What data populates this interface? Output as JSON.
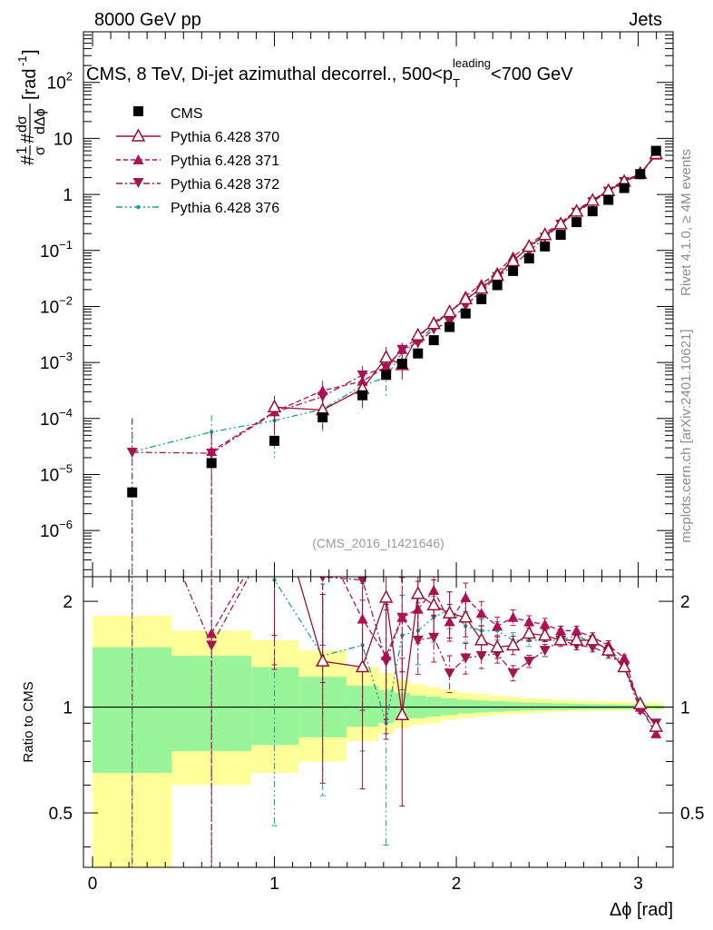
{
  "header": {
    "left": "8000 GeV pp",
    "right": "Jets"
  },
  "side_labels": {
    "rivet": "Rivet 4.1.0, ≥ 4M events",
    "mcplots": "mcplots.cern.ch [arXiv:2401.10621]"
  },
  "watermark": "(CMS_2016_I1421646)",
  "colors": {
    "cms": "#000000",
    "p370": "#9b1030",
    "p371": "#b0105a",
    "p372": "#a01850",
    "p376": "#17a095",
    "band_inner": "#99f599",
    "band_outer": "#ffff99"
  },
  "chart_data": {
    "type": "scatter",
    "title": "CMS, 8 TeV, Di-jet azimuthal decorrel., 500<p_T^leading<700 GeV",
    "title_parts": {
      "pre": "CMS, 8 TeV, Di-jet azimuthal decorrel., 500<p",
      "sub": "T",
      "sup": "leading",
      "post": "<700 GeV"
    },
    "xlabel": "Δϕ [rad]",
    "ylabel": "#frac{1}{σ}#frac{dσ}{dΔϕ} [rad⁻¹]",
    "ylabel_parts": {
      "hash1": "#",
      "num1": "1",
      "den1": "σ",
      "hash2": "#",
      "num2": "dσ",
      "den2": "dΔϕ",
      "unit": "[rad",
      "unit_sup": "-1",
      "unit_close": "]"
    },
    "ratio_ylabel": "Ratio to CMS",
    "xlim": [
      -0.05,
      3.1916
    ],
    "ylim": [
      1.5e-07,
      800
    ],
    "ratio_ylim": [
      0.35,
      2.35
    ],
    "x_ticks": [
      0,
      1,
      2,
      3
    ],
    "x_tick_labels": [
      "0",
      "1",
      "2",
      "3"
    ],
    "y_tick_labels": [
      {
        "value": 1e-06,
        "base": "10",
        "exp": "−6"
      },
      {
        "value": 1e-05,
        "base": "10",
        "exp": "−5"
      },
      {
        "value": 0.0001,
        "base": "10",
        "exp": "−4"
      },
      {
        "value": 0.001,
        "base": "10",
        "exp": "−3"
      },
      {
        "value": 0.01,
        "base": "10",
        "exp": "−2"
      },
      {
        "value": 0.1,
        "base": "10",
        "exp": "−1"
      },
      {
        "value": 1,
        "base": "1",
        "exp": ""
      },
      {
        "value": 10,
        "base": "10",
        "exp": ""
      },
      {
        "value": 100,
        "base": "10",
        "exp": "2"
      }
    ],
    "ratio_tick_labels": [
      {
        "value": 0.5,
        "label": "0.5"
      },
      {
        "value": 1,
        "label": "1"
      },
      {
        "value": 2,
        "label": "2"
      }
    ],
    "x": [
      0.218,
      0.654,
      1.0,
      1.265,
      1.484,
      1.614,
      1.702,
      1.789,
      1.876,
      1.963,
      2.051,
      2.138,
      2.225,
      2.312,
      2.4,
      2.487,
      2.574,
      2.661,
      2.749,
      2.836,
      2.923,
      3.011,
      3.098
    ],
    "bin_edges": [
      0,
      0.436,
      0.873,
      1.134,
      1.396,
      1.571,
      1.658,
      1.745,
      1.833,
      1.92,
      2.007,
      2.094,
      2.182,
      2.269,
      2.356,
      2.443,
      2.531,
      2.618,
      2.705,
      2.793,
      2.88,
      2.967,
      3.054,
      3.1416
    ],
    "series": [
      {
        "name": "CMS",
        "marker": "square",
        "values": [
          4.8e-06,
          1.6e-05,
          4e-05,
          0.000105,
          0.00026,
          0.0006,
          0.00095,
          0.00145,
          0.0025,
          0.0043,
          0.0075,
          0.0135,
          0.024,
          0.043,
          0.072,
          0.118,
          0.19,
          0.32,
          0.5,
          0.8,
          1.3,
          2.3,
          6.0
        ],
        "rel_err": [
          0.18,
          0.12,
          0.18,
          0.1,
          0.08,
          0.06,
          0.05,
          0.05,
          0.04,
          0.035,
          0.03,
          0.03,
          0.03,
          0.03,
          0.03,
          0.03,
          0.03,
          0.03,
          0.03,
          0.03,
          0.03,
          0.03,
          0.03
        ]
      },
      {
        "name": "Pythia 6.428 370",
        "marker": "triangle-up-open",
        "line": "solid",
        "ratio": [
          null,
          null,
          4.0,
          1.35,
          1.3,
          2.05,
          0.95,
          2.1,
          1.95,
          1.85,
          1.8,
          1.55,
          1.48,
          1.5,
          1.62,
          1.6,
          1.55,
          1.55,
          1.55,
          1.45,
          1.3,
          1.02,
          0.88
        ],
        "ratio_err": [
          null,
          null,
          0.6,
          0.55,
          0.55,
          0.55,
          0.45,
          0.25,
          0.18,
          0.15,
          0.12,
          0.1,
          0.07,
          0.06,
          0.05,
          0.04,
          0.04,
          0.03,
          0.03,
          0.03,
          0.02,
          0.02,
          0.02
        ]
      },
      {
        "name": "Pythia 6.428 371",
        "marker": "triangle-up",
        "line": "dashed",
        "ratio": [
          null,
          1.62,
          3.3,
          3.0,
          1.78,
          1.4,
          1.8,
          1.9,
          2.15,
          1.75,
          2.05,
          1.85,
          1.7,
          1.8,
          1.75,
          1.72,
          1.65,
          1.65,
          1.58,
          1.5,
          1.38,
          1.0,
          0.84
        ],
        "ratio_err": [
          null,
          1.2,
          0.6,
          0.5,
          0.45,
          0.4,
          0.3,
          0.2,
          0.15,
          0.12,
          0.1,
          0.08,
          0.06,
          0.05,
          0.04,
          0.04,
          0.03,
          0.03,
          0.03,
          0.03,
          0.02,
          0.02,
          0.02
        ]
      },
      {
        "name": "Pythia 6.428 372",
        "marker": "triangle-down",
        "line": "dashdot",
        "ratio": [
          5.2,
          1.5,
          3.2,
          2.35,
          2.3,
          1.35,
          1.8,
          1.55,
          1.58,
          1.25,
          1.38,
          1.4,
          1.42,
          1.25,
          1.35,
          1.45,
          1.55,
          1.5,
          1.48,
          1.42,
          1.3,
          0.98,
          0.9
        ],
        "ratio_err": [
          3.0,
          1.2,
          0.6,
          0.5,
          0.45,
          0.4,
          0.3,
          0.2,
          0.15,
          0.12,
          0.1,
          0.08,
          0.06,
          0.05,
          0.04,
          0.04,
          0.03,
          0.03,
          0.03,
          0.03,
          0.02,
          0.02,
          0.02
        ]
      },
      {
        "name": "Pythia 6.428 376",
        "marker": "star",
        "line": "dashdotdot",
        "ratio": [
          5.3,
          3.6,
          2.3,
          1.4,
          1.5,
          0.9,
          1.6,
          1.65,
          1.8,
          1.9,
          1.7,
          1.65,
          1.65,
          1.55,
          1.55,
          1.55,
          1.55,
          1.6,
          1.52,
          1.48,
          1.32,
          1.0,
          0.85
        ],
        "ratio_err": [
          3.0,
          1.0,
          0.8,
          0.6,
          0.5,
          0.55,
          0.3,
          0.2,
          0.15,
          0.12,
          0.1,
          0.08,
          0.06,
          0.05,
          0.04,
          0.04,
          0.03,
          0.03,
          0.03,
          0.03,
          0.02,
          0.02,
          0.02
        ]
      }
    ],
    "band_inner": [
      [
        0.65,
        1.48
      ],
      [
        0.75,
        1.4
      ],
      [
        0.78,
        1.3
      ],
      [
        0.82,
        1.22
      ],
      [
        0.88,
        1.15
      ],
      [
        0.9,
        1.12
      ],
      [
        0.92,
        1.1
      ],
      [
        0.93,
        1.08
      ],
      [
        0.94,
        1.07
      ],
      [
        0.95,
        1.06
      ],
      [
        0.96,
        1.05
      ],
      [
        0.965,
        1.045
      ],
      [
        0.97,
        1.04
      ],
      [
        0.975,
        1.035
      ],
      [
        0.978,
        1.03
      ],
      [
        0.98,
        1.028
      ],
      [
        0.982,
        1.025
      ],
      [
        0.984,
        1.022
      ],
      [
        0.985,
        1.02
      ],
      [
        0.986,
        1.018
      ],
      [
        0.987,
        1.016
      ],
      [
        0.988,
        1.015
      ],
      [
        0.99,
        1.012
      ]
    ],
    "band_outer": [
      [
        0.35,
        1.82
      ],
      [
        0.6,
        1.65
      ],
      [
        0.65,
        1.55
      ],
      [
        0.7,
        1.45
      ],
      [
        0.8,
        1.3
      ],
      [
        0.84,
        1.25
      ],
      [
        0.87,
        1.2
      ],
      [
        0.89,
        1.16
      ],
      [
        0.9,
        1.14
      ],
      [
        0.92,
        1.12
      ],
      [
        0.93,
        1.1
      ],
      [
        0.94,
        1.09
      ],
      [
        0.95,
        1.08
      ],
      [
        0.955,
        1.07
      ],
      [
        0.96,
        1.06
      ],
      [
        0.965,
        1.055
      ],
      [
        0.97,
        1.05
      ],
      [
        0.972,
        1.045
      ],
      [
        0.975,
        1.04
      ],
      [
        0.977,
        1.038
      ],
      [
        0.979,
        1.035
      ],
      [
        0.98,
        1.032
      ],
      [
        0.982,
        1.03
      ]
    ]
  }
}
